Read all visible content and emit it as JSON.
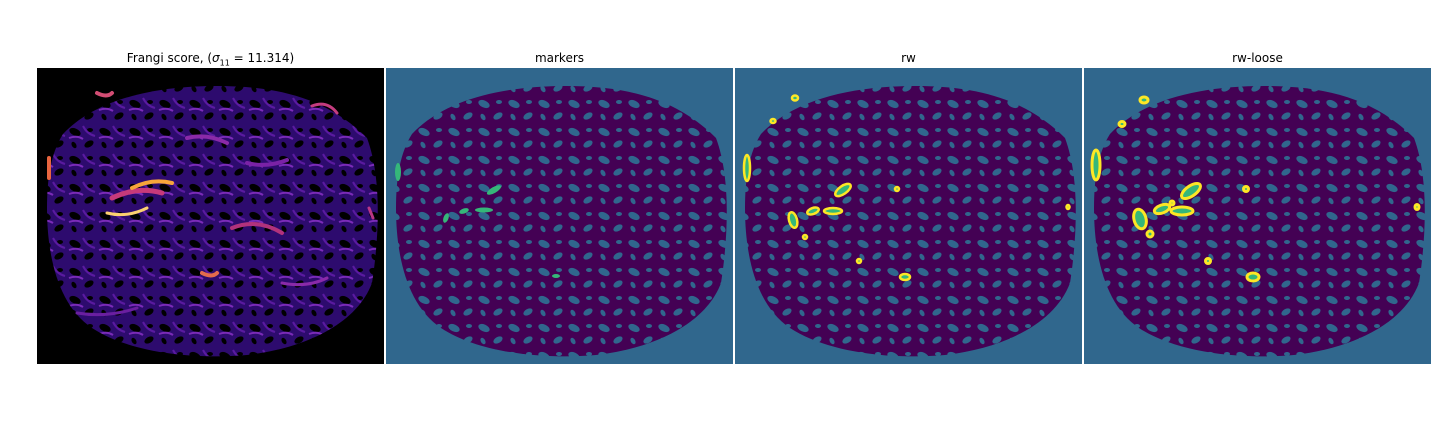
{
  "figure": {
    "panels": [
      {
        "id": "frangi",
        "title_prefix": "Frangi score, (",
        "title_sigma": "σ",
        "title_sub": "11",
        "title_suffix": " = 11.314)",
        "colormap": "magma",
        "background": "#000000"
      },
      {
        "id": "markers",
        "title": "markers",
        "colormap": "viridis-labels",
        "background": "#30678d"
      },
      {
        "id": "rw",
        "title": "rw",
        "colormap": "viridis-labels",
        "background": "#30678d"
      },
      {
        "id": "rw-loose",
        "title": "rw-loose",
        "colormap": "viridis-labels",
        "background": "#30678d"
      }
    ],
    "colors": {
      "label_background": "#30678d",
      "label_tissue": "#440154",
      "label_marker": "#35b779",
      "label_vessel": "#fde725",
      "magma_mid": "#6a1fa0",
      "magma_high": "#f28a2f",
      "magma_peak": "#fcfdbf"
    }
  }
}
